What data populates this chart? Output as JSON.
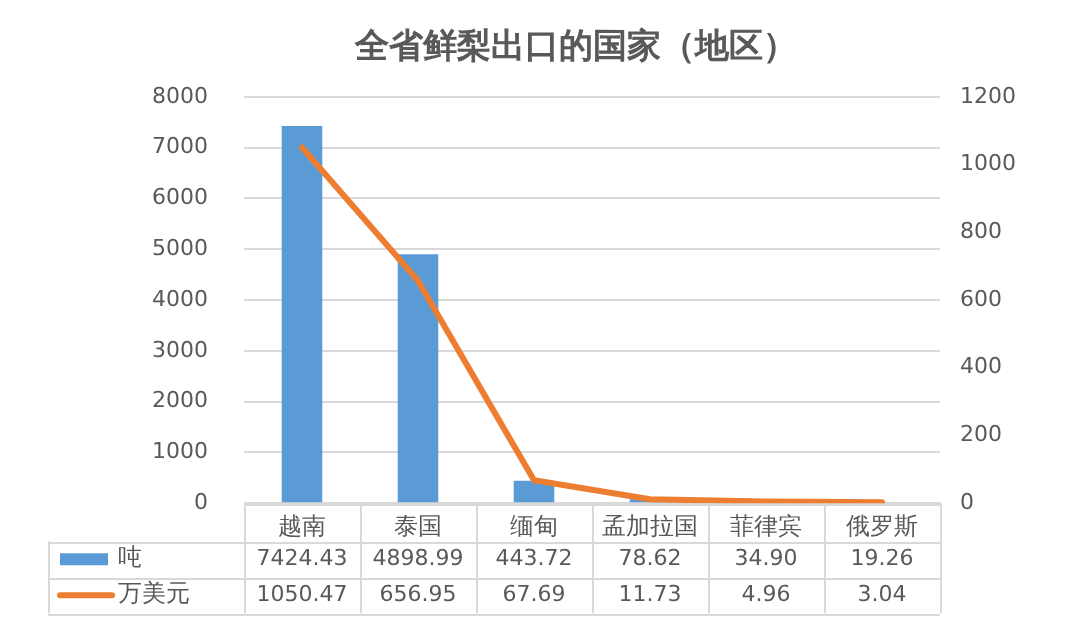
{
  "chart_data": {
    "type": "bar",
    "title": "全省鲜梨出口的国家（地区）",
    "categories": [
      "越南",
      "泰国",
      "缅甸",
      "孟加拉国",
      "菲律宾",
      "俄罗斯"
    ],
    "series": [
      {
        "name": "吨",
        "color": "#5b9bd5",
        "values": [
          7424.43,
          4898.99,
          443.72,
          78.62,
          34.9,
          19.26
        ],
        "value_labels": [
          "7424.43",
          "4898.99",
          "443.72",
          "78.62",
          "34.90",
          "19.26"
        ]
      },
      {
        "name": "万美元",
        "type": "line",
        "axis": "y2",
        "color": "#ed7d31",
        "values": [
          1050.47,
          656.95,
          67.69,
          11.73,
          4.96,
          3.04
        ],
        "value_labels": [
          "1050.47",
          "656.95",
          "67.69",
          "11.73",
          "4.96",
          "3.04"
        ]
      }
    ],
    "ylim": [
      0,
      8000
    ],
    "yticks": [
      0,
      1000,
      2000,
      3000,
      4000,
      5000,
      6000,
      7000,
      8000
    ],
    "y2lim": [
      0,
      1200
    ],
    "y2ticks": [
      0,
      200,
      400,
      600,
      800,
      1000,
      1200
    ],
    "grid": "y",
    "legend": "bottom",
    "marker": "none",
    "line_style": "solid"
  }
}
